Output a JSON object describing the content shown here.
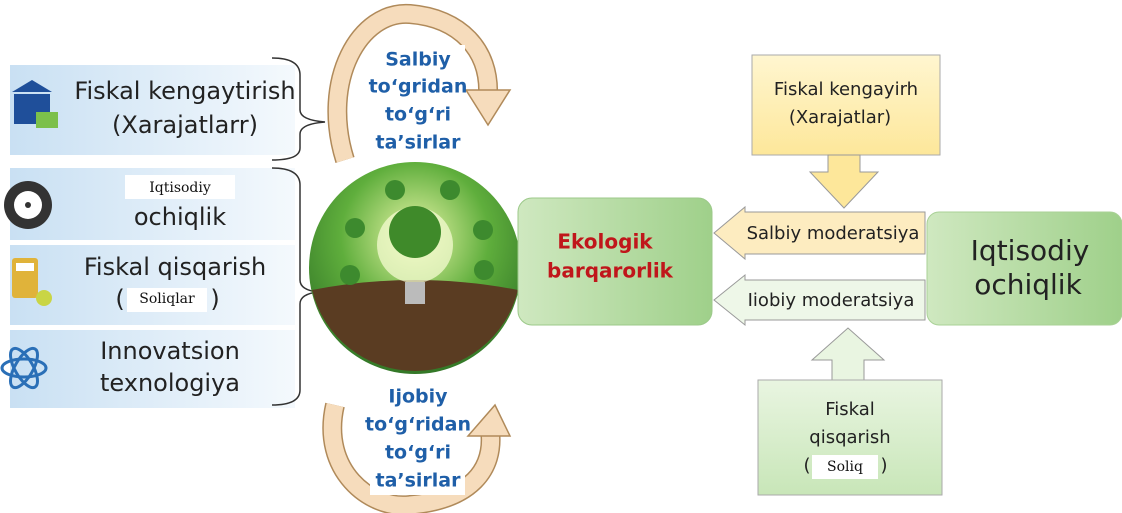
{
  "left_boxes": [
    {
      "lines": [
        "Fiskal kengaytirish",
        "(Xarajatlarr)"
      ]
    },
    {
      "overlay": "Iqtisodiy",
      "lines": [
        "ochiqlik"
      ]
    },
    {
      "lines": [
        "Fiskal qisqarish"
      ],
      "open": "(",
      "overlay": "Soliqlar",
      "close": ")"
    },
    {
      "lines": [
        "Innovatsion",
        "texnologiya"
      ]
    }
  ],
  "top_effect": [
    "Salbiy",
    "to‘gridan",
    "to‘g‘ri",
    "ta’sirlar"
  ],
  "bottom_effect": [
    "Ijobiy",
    "to‘g‘ridan",
    "to‘g‘ri",
    "ta’sirlar"
  ],
  "center": [
    "Ekologik",
    "barqarorlik"
  ],
  "right": {
    "top_box": [
      "Fiskal kengayirh",
      "(Xarajatlar)"
    ],
    "arrow_upper": "Salbiy moderatsiya",
    "arrow_lower": "Iiobiy moderatsiya",
    "main_box": [
      "Iqtisodiy",
      "ochiqlik"
    ],
    "bottom_box": {
      "lines": [
        "Fiskal",
        "qisqarish"
      ],
      "open": "(",
      "overlay": "Soliq",
      "close": ")"
    }
  }
}
